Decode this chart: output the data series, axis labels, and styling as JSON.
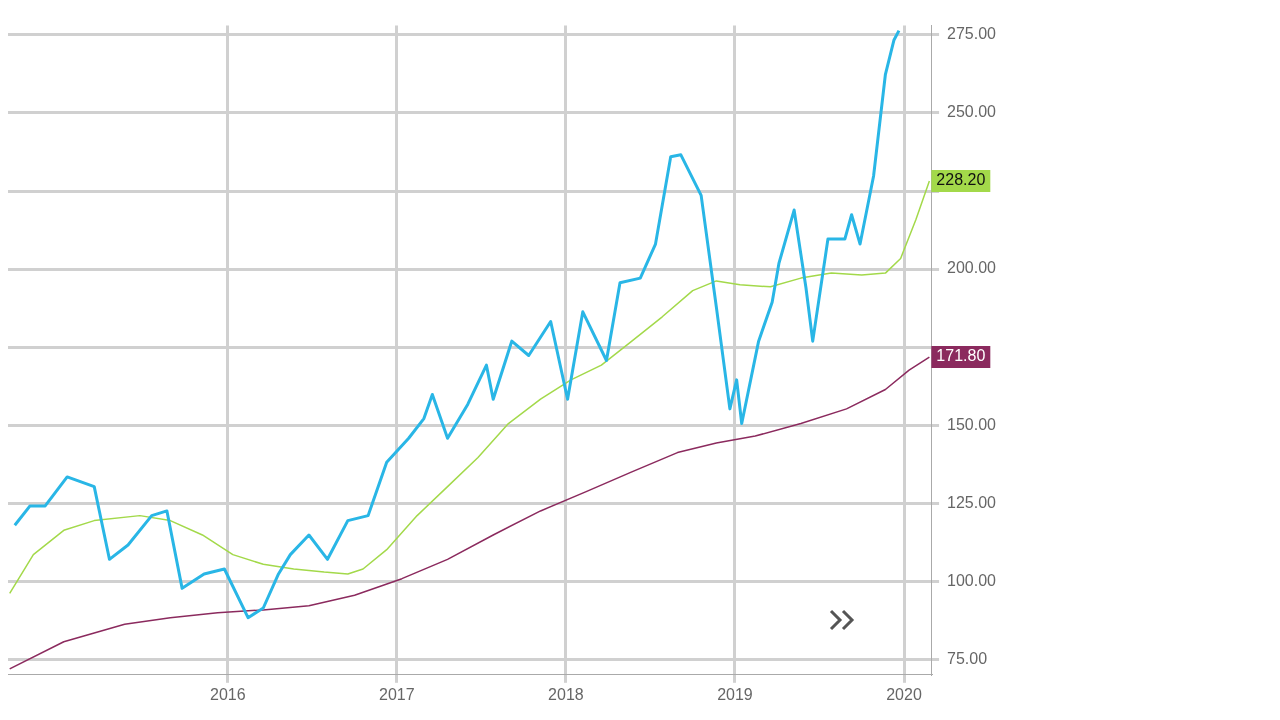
{
  "chart_data": {
    "type": "line",
    "xlim": [
      2014.7,
      2020.16
    ],
    "xticks": [
      2016,
      2017,
      2018,
      2019,
      2020
    ],
    "ylim": [
      70,
      278
    ],
    "yticks": [
      {
        "value": 75,
        "label": "75.00"
      },
      {
        "value": 100,
        "label": "100.00"
      },
      {
        "value": 125,
        "label": "125.00"
      },
      {
        "value": 150,
        "label": "150.00"
      },
      {
        "value": 175,
        "label": null
      },
      {
        "value": 200,
        "label": "200.00"
      },
      {
        "value": 225,
        "label": null
      },
      {
        "value": 250,
        "label": "250.00"
      },
      {
        "value": 275,
        "label": "275.00"
      }
    ],
    "grid": true,
    "legend": false,
    "marker": "none",
    "line_style": "solid",
    "series": [
      {
        "color": "#29b6e6",
        "x": [
          2014.74,
          2014.83,
          2014.92,
          2015.05,
          2015.21,
          2015.3,
          2015.41,
          2015.55,
          2015.64,
          2015.73,
          2015.86,
          2015.98,
          2016.12,
          2016.21,
          2016.3,
          2016.37,
          2016.48,
          2016.59,
          2016.71,
          2016.83,
          2016.94,
          2017.07,
          2017.16,
          2017.21,
          2017.3,
          2017.42,
          2017.53,
          2017.57,
          2017.68,
          2017.78,
          2017.91,
          2018.01,
          2018.1,
          2018.24,
          2018.32,
          2018.44,
          2018.53,
          2018.62,
          2018.68,
          2018.8,
          2018.89,
          2018.97,
          2019.01,
          2019.04,
          2019.14,
          2019.22,
          2019.26,
          2019.35,
          2019.42,
          2019.46,
          2019.55,
          2019.65,
          2019.69,
          2019.74,
          2019.82,
          2019.89,
          2019.94,
          2019.97
        ],
        "values": [
          117.9,
          124.1,
          124.1,
          133.4,
          130.3,
          107,
          111.6,
          121,
          122.5,
          97.7,
          102.3,
          103.9,
          88.3,
          91.4,
          102.3,
          108.5,
          114.8,
          107,
          119.4,
          121,
          138.1,
          145.8,
          152.1,
          159.8,
          145.8,
          156.7,
          169.2,
          158.3,
          176.9,
          172.3,
          183.2,
          158.3,
          186.3,
          170.7,
          195.6,
          197.1,
          208,
          236,
          236.6,
          223.6,
          187.8,
          155.2,
          164.5,
          150.5,
          176.9,
          189.4,
          201.8,
          218.9,
          194,
          176.9,
          209.6,
          209.6,
          217.4,
          208,
          229.8,
          262.4,
          273.3,
          276.4
        ]
      },
      {
        "color": "#a3d94a",
        "x": [
          2014.71,
          2014.85,
          2015.03,
          2015.21,
          2015.48,
          2015.66,
          2015.85,
          2016.03,
          2016.21,
          2016.39,
          2016.57,
          2016.71,
          2016.8,
          2016.94,
          2017.12,
          2017.3,
          2017.48,
          2017.66,
          2017.85,
          2018.03,
          2018.21,
          2018.39,
          2018.57,
          2018.75,
          2018.89,
          2019.03,
          2019.21,
          2019.39,
          2019.57,
          2019.75,
          2019.89,
          2019.98,
          2020.07,
          2020.15
        ],
        "values": [
          96.1,
          108.5,
          116.3,
          119.4,
          121,
          119.4,
          114.8,
          108.5,
          105.4,
          103.9,
          102.9,
          102.3,
          103.9,
          110.1,
          121,
          130.3,
          139.6,
          150.5,
          158.3,
          164.5,
          169.2,
          176.9,
          184.7,
          193.1,
          196.2,
          195,
          194.3,
          197.1,
          198.7,
          198.1,
          198.7,
          203.4,
          215.8,
          228.2
        ]
      },
      {
        "color": "#8b2a5e",
        "x": [
          2014.71,
          2015.03,
          2015.39,
          2015.66,
          2015.94,
          2016.21,
          2016.48,
          2016.75,
          2017.03,
          2017.3,
          2017.57,
          2017.85,
          2018.12,
          2018.39,
          2018.66,
          2018.89,
          2019.12,
          2019.39,
          2019.66,
          2019.89,
          2020.03,
          2020.15
        ],
        "values": [
          71.9,
          80.6,
          86.2,
          88.3,
          89.9,
          90.8,
          92.1,
          95.5,
          100.8,
          107,
          114.8,
          122.5,
          128.7,
          135,
          141.2,
          144.3,
          146.5,
          150.5,
          155.2,
          161.4,
          167.6,
          171.8
        ]
      }
    ],
    "annotations": [
      {
        "text": "228.20",
        "x": 2020.15,
        "y": 228.2
      },
      {
        "text": "171.80",
        "x": 2020.15,
        "y": 171.8
      }
    ]
  }
}
